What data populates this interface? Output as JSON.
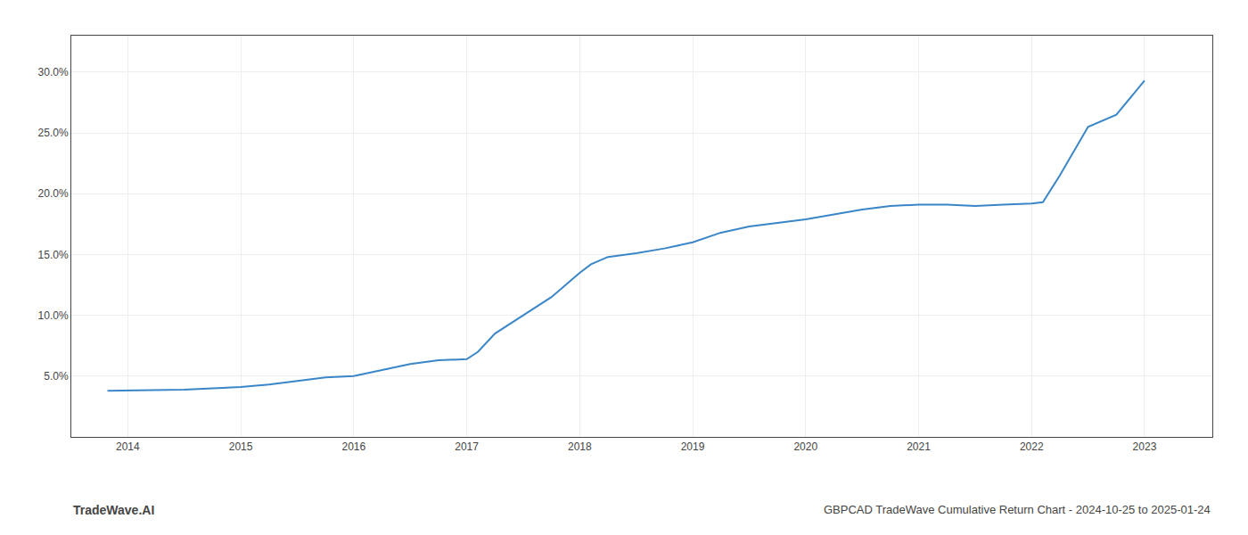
{
  "chart_data": {
    "type": "line",
    "x": [
      2013.82,
      2014.0,
      2014.25,
      2014.5,
      2014.75,
      2015.0,
      2015.25,
      2015.5,
      2015.75,
      2016.0,
      2016.25,
      2016.5,
      2016.75,
      2017.0,
      2017.1,
      2017.25,
      2017.5,
      2017.75,
      2018.0,
      2018.1,
      2018.25,
      2018.5,
      2018.75,
      2019.0,
      2019.25,
      2019.5,
      2019.75,
      2020.0,
      2020.25,
      2020.5,
      2020.75,
      2021.0,
      2021.25,
      2021.5,
      2021.75,
      2022.0,
      2022.1,
      2022.25,
      2022.5,
      2022.75,
      2023.0
    ],
    "values": [
      3.8,
      3.82,
      3.85,
      3.88,
      4.0,
      4.1,
      4.3,
      4.6,
      4.9,
      5.0,
      5.5,
      6.0,
      6.3,
      6.4,
      7.0,
      8.5,
      10.0,
      11.5,
      13.5,
      14.2,
      14.8,
      15.1,
      15.5,
      16.0,
      16.8,
      17.3,
      17.6,
      17.9,
      18.3,
      18.7,
      19.0,
      19.1,
      19.1,
      19.0,
      19.1,
      19.2,
      19.3,
      21.5,
      25.5,
      26.5,
      29.3
    ],
    "color": "#3a86c8",
    "xlim": [
      2013.5,
      2023.6
    ],
    "xticks": [
      2014,
      2015,
      2016,
      2017,
      2018,
      2019,
      2020,
      2021,
      2022,
      2023
    ],
    "ylim": [
      0,
      33
    ],
    "yticks": [
      {
        "value": 5.0,
        "label": "5.0%"
      },
      {
        "value": 10.0,
        "label": "10.0%"
      },
      {
        "value": 15.0,
        "label": "15.0%"
      },
      {
        "value": 20.0,
        "label": "20.0%"
      },
      {
        "value": 25.0,
        "label": "25.0%"
      },
      {
        "value": 30.0,
        "label": "30.0%"
      }
    ],
    "grid": true,
    "annotations": [
      "TradeWave.AI",
      "GBPCAD TradeWave Cumulative Return Chart - 2024-10-25 to 2025-01-24"
    ]
  }
}
